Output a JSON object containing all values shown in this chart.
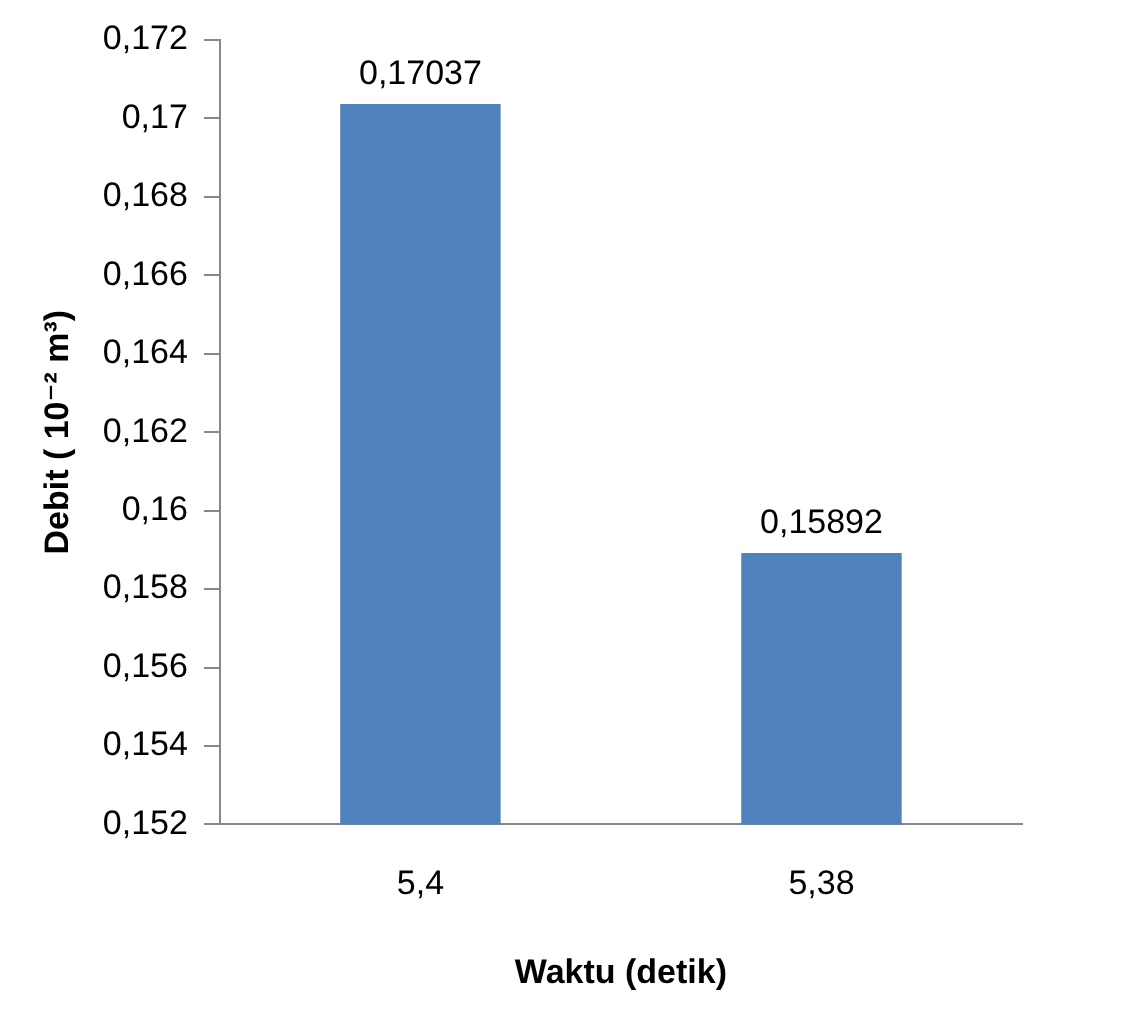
{
  "chart_data": {
    "type": "bar",
    "xlabel": "Waktu (detik)",
    "ylabel": "Debit ( 10⁻² m³)",
    "categories": [
      "5,4",
      "5,38"
    ],
    "values": [
      0.17037,
      0.15892
    ],
    "value_labels": [
      "0,17037",
      "0,15892"
    ],
    "color": "#4f81bd",
    "ylim": [
      0.152,
      0.172
    ],
    "yticks": [
      {
        "value": 0.152,
        "label": "0,152"
      },
      {
        "value": 0.154,
        "label": "0,154"
      },
      {
        "value": 0.156,
        "label": "0,156"
      },
      {
        "value": 0.158,
        "label": "0,158"
      },
      {
        "value": 0.16,
        "label": "0,16"
      },
      {
        "value": 0.162,
        "label": "0,162"
      },
      {
        "value": 0.164,
        "label": "0,164"
      },
      {
        "value": 0.166,
        "label": "0,166"
      },
      {
        "value": 0.168,
        "label": "0,168"
      },
      {
        "value": 0.17,
        "label": "0,17"
      },
      {
        "value": 0.172,
        "label": "0,172"
      }
    ],
    "grid": false,
    "legend": false
  }
}
